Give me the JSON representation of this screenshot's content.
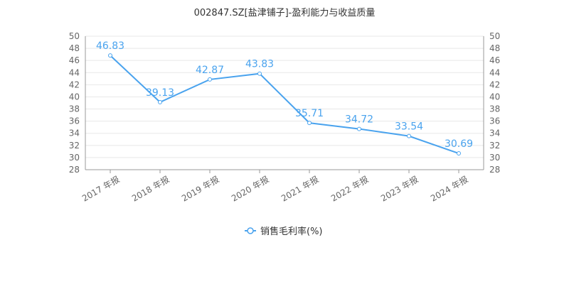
{
  "chart_data": {
    "type": "line",
    "title": "002847.SZ[盐津铺子]-盈利能力与收益质量",
    "categories": [
      "2017 年报",
      "2018 年报",
      "2019 年报",
      "2020 年报",
      "2021 年报",
      "2022 年报",
      "2023 年报",
      "2024 年报"
    ],
    "series": [
      {
        "name": "销售毛利率(%)",
        "values": [
          46.83,
          39.13,
          42.87,
          43.83,
          35.71,
          34.72,
          33.54,
          30.69
        ],
        "color": "#4aa3ee"
      }
    ],
    "ylim": [
      28,
      50
    ],
    "ytick_step": 2,
    "yticks": [
      "28",
      "30",
      "32",
      "34",
      "36",
      "38",
      "40",
      "42",
      "44",
      "46",
      "48",
      "50"
    ],
    "y2ticks": [
      "28",
      "30",
      "32",
      "34",
      "36",
      "38",
      "40",
      "42",
      "44",
      "46",
      "48",
      "50"
    ],
    "grid": true,
    "legend": "bottom-center",
    "xlabel": "",
    "ylabel": ""
  }
}
